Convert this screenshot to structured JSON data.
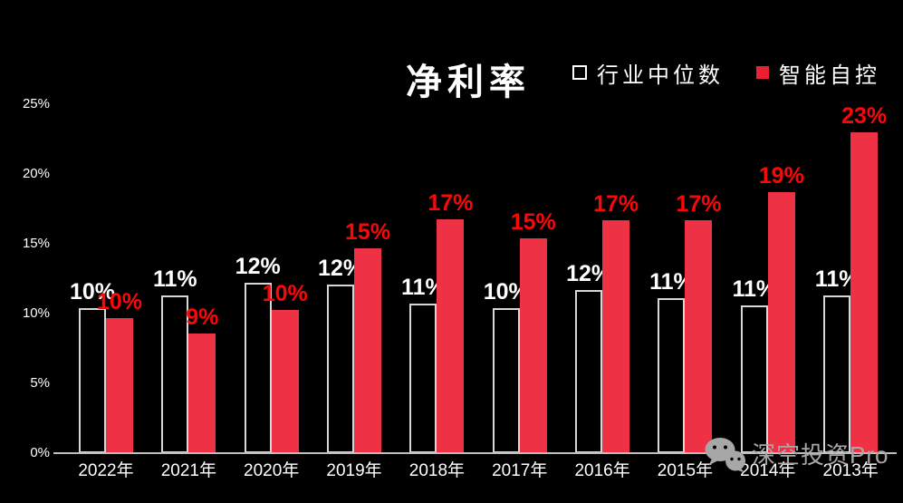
{
  "page": {
    "background": "#000000"
  },
  "chart_data": {
    "type": "bar",
    "title": "净利率",
    "categories": [
      "2022年",
      "2021年",
      "2020年",
      "2019年",
      "2018年",
      "2017年",
      "2016年",
      "2015年",
      "2014年",
      "2013年"
    ],
    "series": [
      {
        "key": "industry-median",
        "name": "行业中位数",
        "bar_style": "outline",
        "bar_color": "#D7D7D7",
        "label_color": "#FFFFFF",
        "labels": [
          "10%",
          "11%",
          "12%",
          "12%",
          "11%",
          "10%",
          "12%",
          "11%",
          "11%",
          "11%"
        ],
        "values": [
          10,
          11,
          12,
          12,
          11,
          10,
          12,
          11,
          11,
          11
        ],
        "values_precise": [
          10.4,
          11.3,
          12.2,
          12.1,
          10.7,
          10.4,
          11.7,
          11.1,
          10.6,
          11.3
        ]
      },
      {
        "key": "zhineng-zikong",
        "name": "智能自控",
        "bar_style": "fill",
        "bar_color": "#EE3145",
        "label_color": "#FE0606",
        "labels": [
          "10%",
          "9%",
          "10%",
          "15%",
          "17%",
          "15%",
          "17%",
          "17%",
          "19%",
          "23%"
        ],
        "values": [
          10,
          9,
          10,
          15,
          17,
          15,
          17,
          17,
          19,
          23
        ],
        "values_precise": [
          9.7,
          8.6,
          10.3,
          14.7,
          16.8,
          15.4,
          16.7,
          16.7,
          18.7,
          23.0
        ]
      }
    ],
    "y_axis": {
      "ticks": [
        "0%",
        "5%",
        "10%",
        "15%",
        "20%",
        "25%"
      ],
      "min": 0,
      "max": 25,
      "step": 5
    },
    "legend_position": "top-right",
    "grid": false,
    "background": "#000000",
    "axis_line_color": "#BFBFBF"
  },
  "watermark": {
    "text": "深空投资Pro",
    "icon": "wechat-logo-icon",
    "color": "#A7A7A7"
  }
}
